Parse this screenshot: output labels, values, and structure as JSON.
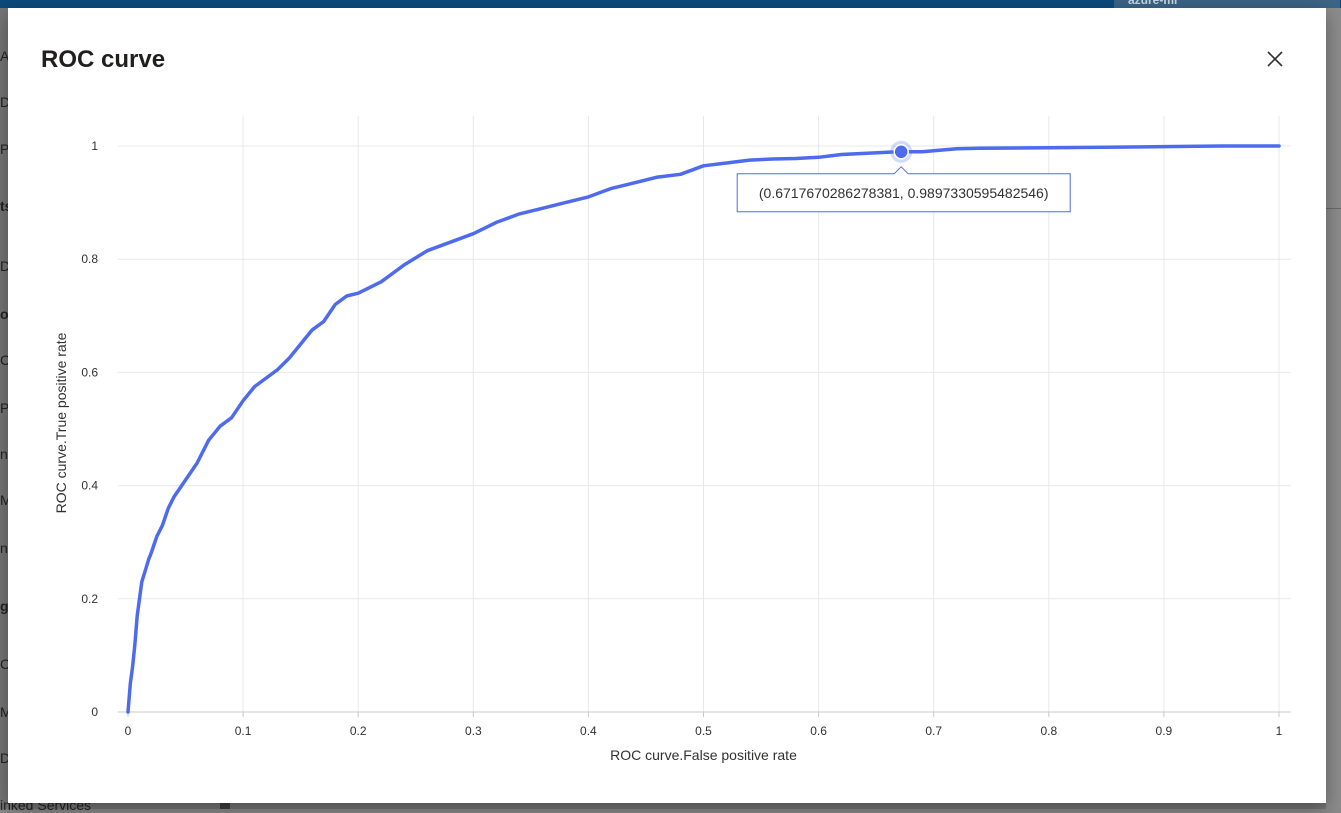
{
  "background": {
    "workspace_label": "azure-ml",
    "sidebar_fragments": [
      "Au",
      "De",
      "Pr",
      "ts",
      "Da",
      "o",
      "Co",
      "Pi",
      "n",
      "M",
      "n",
      "g",
      "Co",
      "M",
      "Da",
      "inked Services"
    ]
  },
  "dialog": {
    "title": "ROC curve",
    "close_icon": "close-icon"
  },
  "colors": {
    "series": "#4f6bed",
    "grid": "#e8e8e8",
    "tooltip_border": "#4f6bed"
  },
  "chart_data": {
    "type": "line",
    "xlabel": "ROC curve.False positive rate",
    "ylabel": "ROC curve.True positive rate",
    "xlim": [
      0,
      1
    ],
    "ylim": [
      0,
      1
    ],
    "x_ticks": [
      "0",
      "0.1",
      "0.2",
      "0.3",
      "0.4",
      "0.5",
      "0.6",
      "0.7",
      "0.8",
      "0.9",
      "1"
    ],
    "y_ticks": [
      "0",
      "0.2",
      "0.4",
      "0.6",
      "0.8",
      "1"
    ],
    "grid": true,
    "series": [
      {
        "x": [
          0,
          0.002,
          0.004,
          0.006,
          0.008,
          0.01,
          0.012,
          0.015,
          0.018,
          0.02,
          0.025,
          0.03,
          0.035,
          0.04,
          0.05,
          0.06,
          0.07,
          0.08,
          0.09,
          0.1,
          0.11,
          0.12,
          0.13,
          0.14,
          0.15,
          0.16,
          0.17,
          0.18,
          0.19,
          0.2,
          0.22,
          0.24,
          0.26,
          0.28,
          0.3,
          0.32,
          0.34,
          0.36,
          0.38,
          0.4,
          0.42,
          0.44,
          0.46,
          0.48,
          0.5,
          0.52,
          0.54,
          0.56,
          0.58,
          0.6,
          0.62,
          0.64,
          0.66,
          0.6718,
          0.69,
          0.72,
          0.74,
          0.8,
          0.86,
          0.9,
          0.95,
          1.0
        ],
        "y": [
          0,
          0.05,
          0.08,
          0.12,
          0.17,
          0.2,
          0.23,
          0.25,
          0.27,
          0.28,
          0.31,
          0.33,
          0.36,
          0.38,
          0.41,
          0.44,
          0.48,
          0.505,
          0.52,
          0.55,
          0.575,
          0.59,
          0.605,
          0.625,
          0.65,
          0.675,
          0.69,
          0.72,
          0.735,
          0.74,
          0.76,
          0.79,
          0.815,
          0.83,
          0.845,
          0.865,
          0.88,
          0.89,
          0.9,
          0.91,
          0.925,
          0.935,
          0.945,
          0.95,
          0.965,
          0.97,
          0.975,
          0.977,
          0.978,
          0.98,
          0.985,
          0.987,
          0.989,
          0.9897,
          0.99,
          0.995,
          0.996,
          0.997,
          0.998,
          0.999,
          1.0,
          1.0
        ]
      }
    ],
    "highlight": {
      "x": 0.6717670286278381,
      "y": 0.9897330595482546,
      "label": "(0.6717670286278381, 0.9897330595482546)"
    }
  }
}
